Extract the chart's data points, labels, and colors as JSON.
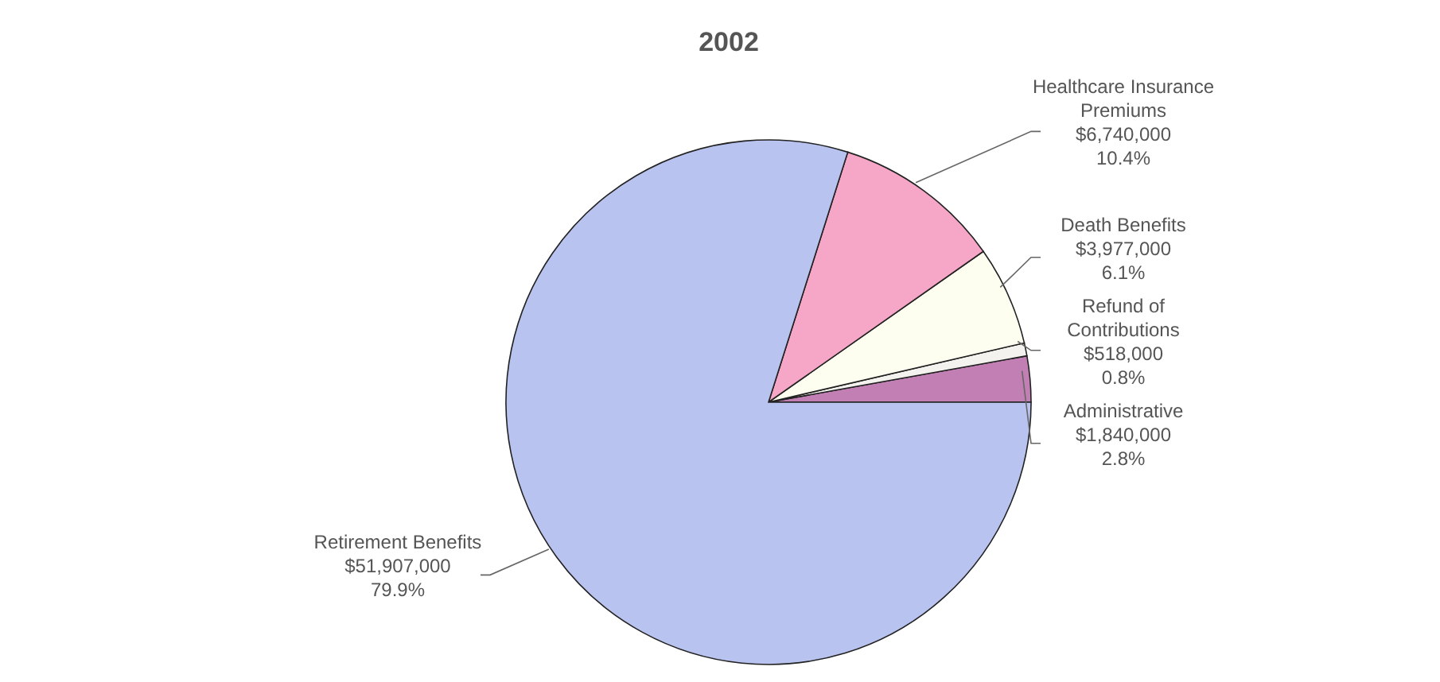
{
  "chart_data": {
    "type": "pie",
    "title": "2002",
    "categories": [
      "Administrative",
      "Refund of Contributions",
      "Death Benefits",
      "Healthcare Insurance Premiums",
      "Retirement Benefits"
    ],
    "values": [
      1840000,
      518000,
      3977000,
      6740000,
      51907000
    ],
    "value_labels": [
      "$1,840,000\n2.8%",
      "$518,000\n0.8%",
      "$3,977,000\n6.1%",
      "$6,740,000\n10.4%",
      "$51,907,000\n79.9%"
    ],
    "colors": [
      "#c27fb4",
      "#f4f2ee",
      "#fdfdf0",
      "#f6a6c6",
      "#b9c3ef"
    ],
    "legend": false
  }
}
